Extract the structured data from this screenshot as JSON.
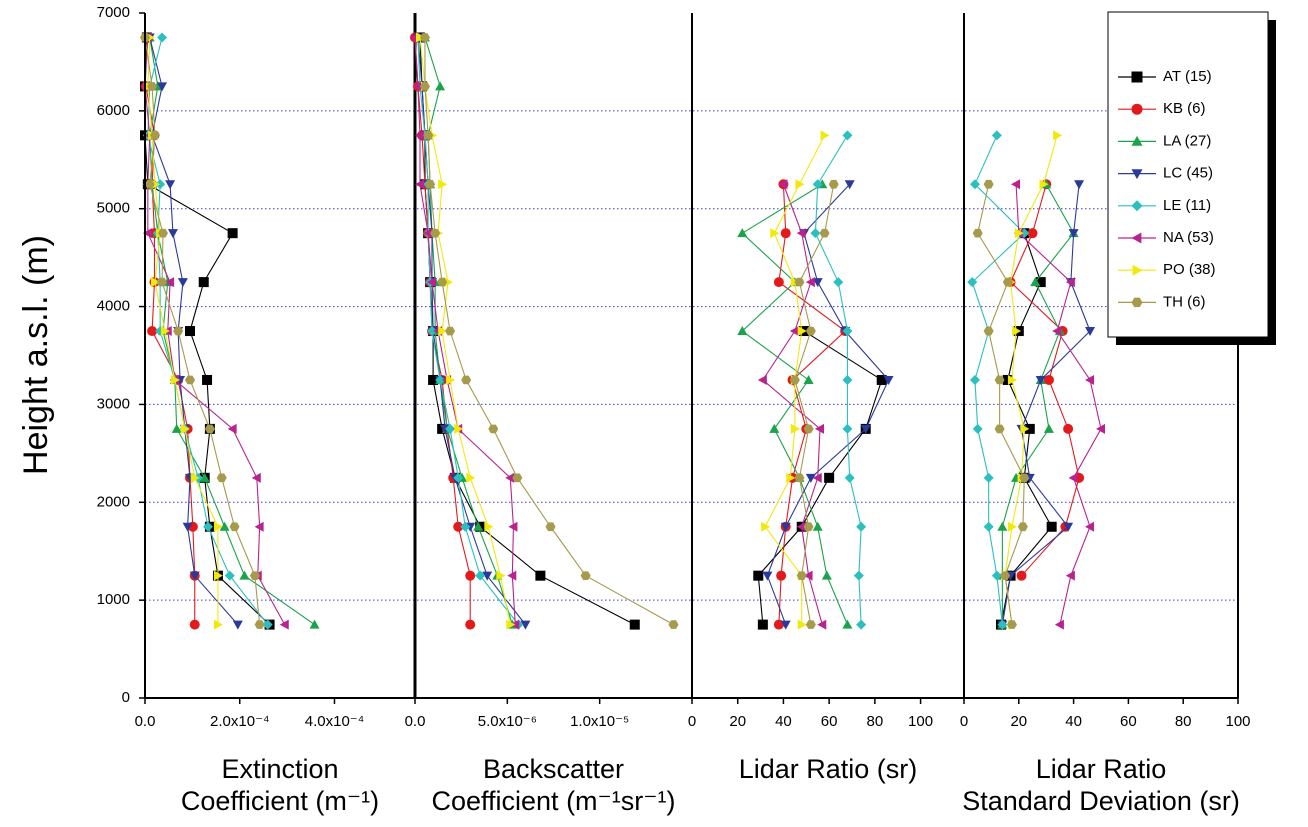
{
  "chart_data": {
    "type": "line",
    "ylabel": "Height a.s.l. (m)",
    "y": [
      750,
      1250,
      1750,
      2250,
      2750,
      3250,
      3750,
      4250,
      4750,
      5250,
      5750,
      6250,
      6750
    ],
    "ylim": [
      0,
      7000
    ],
    "yticks": [
      0,
      1000,
      2000,
      3000,
      4000,
      5000,
      6000,
      7000
    ],
    "grid": true,
    "legend": "upper right",
    "series": [
      {
        "name": "AT (15)",
        "color": "#000000",
        "marker": "square"
      },
      {
        "name": "KB (6)",
        "color": "#e31a1c",
        "marker": "circle"
      },
      {
        "name": "LA (27)",
        "color": "#1aa34a",
        "marker": "triangle-up"
      },
      {
        "name": "LC (45)",
        "color": "#2b3a9a",
        "marker": "triangle-down"
      },
      {
        "name": "LE (11)",
        "color": "#2bbfc0",
        "marker": "diamond"
      },
      {
        "name": "NA (53)",
        "color": "#b8238f",
        "marker": "triangle-left"
      },
      {
        "name": "PO (38)",
        "color": "#f2e90c",
        "marker": "triangle-right"
      },
      {
        "name": "TH (6)",
        "color": "#a69a4d",
        "marker": "hexagon"
      }
    ],
    "panels": [
      {
        "xlabel": [
          "Extinction",
          "Coefficient (m⁻¹)"
        ],
        "xlim": [
          0,
          0.00057
        ],
        "xticks": [
          {
            "value": 0,
            "label": "0.0"
          },
          {
            "value": 0.0002,
            "label": "2.0x10⁻⁴"
          },
          {
            "value": 0.0004,
            "label": "4.0x10⁻⁴"
          }
        ],
        "values": [
          [
            0.000263,
            0.000154,
            0.000137,
            0.000126,
            0.000137,
            0.000131,
            9.5e-05,
            0.000124,
            0.000185,
            6e-06,
            0,
            0,
            4e-06
          ],
          [
            0.000105,
            0.000105,
            0.000101,
            9.5e-05,
            9e-05,
            7e-05,
            1.5e-05,
            2e-05,
            2e-05,
            1.5e-05,
            2e-05,
            2e-06,
            null
          ],
          [
            0.000358,
            0.00021,
            0.000168,
            0.000126,
            6.7e-05,
            6.3e-05,
            3.8e-05,
            4.8e-05,
            2.7e-05,
            1.5e-05,
            1e-05,
            2.7e-05,
            1e-05
          ],
          [
            0.000196,
            0.000105,
            9e-05,
            9.5e-05,
            8.4e-05,
            7.4e-05,
            7e-05,
            8e-05,
            5.9e-05,
            5.3e-05,
            1.5e-05,
            3.6e-05,
            1e-05
          ],
          [
            0.000259,
            0.000179,
            0.000133,
            0.000112,
            8.4e-05,
            6.3e-05,
            3.2e-05,
            3.2e-05,
            2.7e-05,
            3.2e-05,
            6e-06,
            1e-05,
            3.6e-05
          ],
          [
            0.000295,
            0.000238,
            0.000242,
            0.000236,
            0.000185,
            6.3e-05,
            4.8e-05,
            5.3e-05,
            6e-06,
            6e-06,
            1e-05,
            0,
            6e-06
          ],
          [
            0.000154,
            0.000154,
            0.000154,
            0.000105,
            8.4e-05,
            6.3e-05,
            4.2e-05,
            2.1e-05,
            3.2e-05,
            2.1e-05,
            1.5e-05,
            6e-06,
            1e-05
          ],
          [
            0.000242,
            0.000232,
            0.000189,
            0.000162,
            0.000137,
            9.5e-05,
            7e-05,
            3.6e-05,
            3.8e-05,
            1e-05,
            2.1e-05,
            1.5e-05,
            0
          ]
        ]
      },
      {
        "xlabel": [
          "Backscatter",
          "Coefficient (m⁻¹sr⁻¹)"
        ],
        "xlim": [
          0,
          1.5e-05
        ],
        "xticks": [
          {
            "value": 0,
            "label": "0.0"
          },
          {
            "value": 5e-06,
            "label": "5.0x10⁻⁶"
          },
          {
            "value": 1e-05,
            "label": "1.0x10⁻⁵"
          }
        ],
        "values": [
          [
            1.19e-05,
            6.79e-06,
            3.53e-06,
            2.17e-06,
            1.47e-06,
            9.8e-07,
            9.8e-07,
            8.2e-07,
            7.1e-07,
            5.4e-07,
            5.4e-07,
            3.8e-07,
            2.7e-07
          ],
          [
            2.99e-06,
            2.99e-06,
            2.34e-06,
            2.07e-06,
            1.74e-06,
            1.47e-06,
            9.2e-07,
            8.2e-07,
            7.1e-07,
            5.4e-07,
            3.8e-07,
            1.6e-07,
            0
          ],
          [
            5.27e-06,
            4.46e-06,
            3.42e-06,
            2.55e-06,
            1.74e-06,
            1.36e-06,
            1.09e-06,
            1.09e-06,
            9.2e-07,
            8.2e-07,
            7.1e-07,
            1.36e-06,
            5.4e-07
          ],
          [
            5.98e-06,
            3.91e-06,
            2.99e-06,
            2.17e-06,
            1.63e-06,
            1.36e-06,
            9.8e-07,
            9.2e-07,
            9.2e-07,
            7.1e-07,
            5.4e-07,
            3.8e-07,
            1.6e-07
          ],
          [
            5.6e-06,
            3.53e-06,
            2.72e-06,
            2.34e-06,
            1.9e-06,
            1.36e-06,
            9.2e-07,
            8.2e-07,
            7.1e-07,
            7.1e-07,
            5.4e-07,
            2.7e-07,
            1.6e-07
          ],
          [
            5.43e-06,
            5.27e-06,
            5.33e-06,
            5.16e-06,
            2.34e-06,
            1.74e-06,
            1.25e-06,
            9.2e-07,
            7.1e-07,
            2.7e-07,
            2.7e-07,
            1.6e-07,
            0
          ],
          [
            5.16e-06,
            4.62e-06,
            3.97e-06,
            2.99e-06,
            2.34e-06,
            1.9e-06,
            1.47e-06,
            1.79e-06,
            1.25e-06,
            1.47e-06,
            9.2e-07,
            5.4e-07,
            2.7e-07
          ],
          [
            1.4e-05,
            9.24e-06,
            7.34e-06,
            5.54e-06,
            4.24e-06,
            2.77e-06,
            1.9e-06,
            1.47e-06,
            1.09e-06,
            8.2e-07,
            7.1e-07,
            5.4e-07,
            5.4e-07
          ]
        ]
      },
      {
        "xlabel": [
          "Lidar Ratio (sr)"
        ],
        "xlim": [
          0,
          119
        ],
        "xticks": [
          0,
          20,
          40,
          60,
          80,
          100
        ],
        "values": [
          [
            31,
            29,
            48,
            60,
            76,
            83,
            49,
            null,
            null,
            null,
            null,
            null,
            null
          ],
          [
            38,
            39,
            41,
            44,
            50,
            44,
            67,
            38,
            41,
            40,
            null,
            null,
            null
          ],
          [
            68,
            59,
            55,
            47,
            36,
            51,
            22,
            45,
            22,
            57,
            null,
            null,
            null
          ],
          [
            41,
            33,
            41,
            52,
            76,
            86,
            67,
            55,
            49,
            69,
            null,
            null,
            null
          ],
          [
            74,
            73,
            74,
            69,
            68,
            68,
            68,
            64,
            54,
            55,
            68,
            null,
            null
          ],
          [
            57,
            51,
            48,
            55,
            56,
            31,
            45,
            52,
            48,
            40,
            null,
            null,
            null
          ],
          [
            48,
            48,
            32,
            43,
            45,
            45,
            48,
            45,
            36,
            47,
            58,
            null,
            null
          ],
          [
            52,
            48,
            51,
            47,
            51,
            45,
            52,
            47,
            58,
            62,
            null,
            null,
            null
          ]
        ]
      },
      {
        "xlabel": [
          "Lidar Ratio",
          "Standard Deviation (sr)"
        ],
        "xlim": [
          0,
          100
        ],
        "xticks": [
          0,
          20,
          40,
          60,
          80,
          100
        ],
        "values": [
          [
            13.5,
            17,
            32,
            22,
            24,
            16,
            20,
            28,
            22,
            null,
            null,
            null,
            null
          ],
          [
            null,
            21,
            37,
            42,
            38,
            31,
            36,
            17,
            25,
            30,
            null,
            null,
            null
          ],
          [
            14,
            14,
            14,
            19,
            31,
            28,
            35,
            26,
            40,
            30,
            null,
            null,
            null
          ],
          [
            14,
            17,
            38,
            24,
            21,
            28,
            46,
            39,
            40,
            42,
            null,
            null,
            null
          ],
          [
            14,
            12,
            9,
            9,
            5,
            4,
            9,
            3,
            22,
            4,
            12,
            null,
            null
          ],
          [
            35,
            39,
            46,
            40,
            50,
            46,
            34,
            39,
            20,
            19,
            null,
            null,
            null
          ],
          [
            17.5,
            15,
            17.5,
            21,
            22,
            17.5,
            19,
            17,
            20,
            29,
            34,
            null,
            null
          ],
          [
            17.5,
            15,
            21.5,
            22,
            13,
            13,
            9,
            16,
            5,
            9,
            null,
            null,
            null
          ]
        ]
      }
    ]
  }
}
